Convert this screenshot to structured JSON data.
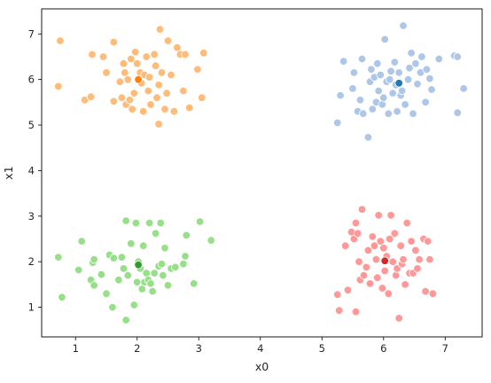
{
  "chart_data": {
    "type": "scatter",
    "xlabel": "x0",
    "ylabel": "x1",
    "xlim": [
      0.45,
      7.6
    ],
    "ylim": [
      0.35,
      7.55
    ],
    "x_ticks": [
      1,
      2,
      3,
      4,
      5,
      6,
      7
    ],
    "y_ticks": [
      1,
      2,
      3,
      4,
      5,
      6,
      7
    ],
    "x_tick_labels": [
      "1",
      "2",
      "3",
      "4",
      "5",
      "6",
      "7"
    ],
    "y_tick_labels": [
      "1",
      "2",
      "3",
      "4",
      "5",
      "6",
      "7"
    ],
    "grid": false,
    "series": [
      {
        "color": "#ffbb78",
        "points": [
          [
            0.75,
            6.85
          ],
          [
            0.72,
            5.85
          ],
          [
            1.15,
            5.55
          ],
          [
            1.25,
            5.62
          ],
          [
            1.27,
            6.55
          ],
          [
            1.45,
            6.5
          ],
          [
            1.5,
            6.15
          ],
          [
            1.62,
            6.82
          ],
          [
            1.62,
            5.52
          ],
          [
            1.72,
            5.95
          ],
          [
            1.75,
            5.6
          ],
          [
            1.78,
            6.35
          ],
          [
            1.8,
            6.15
          ],
          [
            1.82,
            5.45
          ],
          [
            1.85,
            6.0
          ],
          [
            1.88,
            5.55
          ],
          [
            1.9,
            6.45
          ],
          [
            1.92,
            5.35
          ],
          [
            1.95,
            5.7
          ],
          [
            1.97,
            6.6
          ],
          [
            2.0,
            6.35
          ],
          [
            2.05,
            6.15
          ],
          [
            2.07,
            5.92
          ],
          [
            2.1,
            5.3
          ],
          [
            2.12,
            6.1
          ],
          [
            2.15,
            6.5
          ],
          [
            2.18,
            5.75
          ],
          [
            2.2,
            6.05
          ],
          [
            2.22,
            5.45
          ],
          [
            2.28,
            6.55
          ],
          [
            2.3,
            6.3
          ],
          [
            2.32,
            5.6
          ],
          [
            2.35,
            5.02
          ],
          [
            2.35,
            5.88
          ],
          [
            2.37,
            7.1
          ],
          [
            2.4,
            6.15
          ],
          [
            2.45,
            5.35
          ],
          [
            2.48,
            5.7
          ],
          [
            2.5,
            6.85
          ],
          [
            2.55,
            6.1
          ],
          [
            2.6,
            5.3
          ],
          [
            2.65,
            6.7
          ],
          [
            2.7,
            6.55
          ],
          [
            2.75,
            5.75
          ],
          [
            2.78,
            6.55
          ],
          [
            2.85,
            5.38
          ],
          [
            2.98,
            6.22
          ],
          [
            3.05,
            5.6
          ],
          [
            3.08,
            6.58
          ]
        ]
      },
      {
        "color": "#aec7e8",
        "points": [
          [
            5.25,
            5.05
          ],
          [
            5.3,
            5.65
          ],
          [
            5.35,
            6.4
          ],
          [
            5.5,
            5.8
          ],
          [
            5.52,
            6.15
          ],
          [
            5.58,
            5.3
          ],
          [
            5.62,
            5.55
          ],
          [
            5.65,
            6.45
          ],
          [
            5.67,
            5.25
          ],
          [
            5.75,
            4.73
          ],
          [
            5.78,
            5.95
          ],
          [
            5.8,
            6.22
          ],
          [
            5.82,
            5.35
          ],
          [
            5.85,
            6.05
          ],
          [
            5.88,
            5.5
          ],
          [
            5.9,
            6.35
          ],
          [
            5.92,
            5.75
          ],
          [
            5.95,
            6.1
          ],
          [
            5.98,
            5.45
          ],
          [
            6.0,
            5.6
          ],
          [
            6.02,
            6.88
          ],
          [
            6.05,
            5.95
          ],
          [
            6.08,
            5.25
          ],
          [
            6.1,
            6.0
          ],
          [
            6.12,
            6.18
          ],
          [
            6.15,
            5.7
          ],
          [
            6.18,
            6.38
          ],
          [
            6.2,
            5.88
          ],
          [
            6.22,
            5.3
          ],
          [
            6.25,
            6.15
          ],
          [
            6.28,
            5.65
          ],
          [
            6.3,
            5.75
          ],
          [
            6.32,
            7.18
          ],
          [
            6.35,
            5.45
          ],
          [
            6.4,
            6.0
          ],
          [
            6.42,
            6.25
          ],
          [
            6.45,
            6.58
          ],
          [
            6.48,
            5.25
          ],
          [
            6.52,
            6.35
          ],
          [
            6.55,
            5.9
          ],
          [
            6.6,
            6.15
          ],
          [
            6.62,
            6.5
          ],
          [
            6.68,
            5.5
          ],
          [
            6.7,
            6.22
          ],
          [
            6.75,
            6.02
          ],
          [
            6.78,
            5.78
          ],
          [
            6.9,
            6.45
          ],
          [
            7.15,
            6.52
          ],
          [
            7.2,
            6.5
          ],
          [
            7.2,
            5.27
          ],
          [
            7.3,
            5.8
          ]
        ]
      },
      {
        "color": "#98df8a",
        "points": [
          [
            0.72,
            2.1
          ],
          [
            0.78,
            1.22
          ],
          [
            1.05,
            1.82
          ],
          [
            1.1,
            2.45
          ],
          [
            1.25,
            1.6
          ],
          [
            1.28,
            1.98
          ],
          [
            1.3,
            1.48
          ],
          [
            1.3,
            2.05
          ],
          [
            1.42,
            1.72
          ],
          [
            1.5,
            1.3
          ],
          [
            1.55,
            2.15
          ],
          [
            1.6,
            1.0
          ],
          [
            1.62,
            2.08
          ],
          [
            1.7,
            1.6
          ],
          [
            1.75,
            2.1
          ],
          [
            1.78,
            1.85
          ],
          [
            1.82,
            0.72
          ],
          [
            1.82,
            2.9
          ],
          [
            1.85,
            1.7
          ],
          [
            1.9,
            2.4
          ],
          [
            1.95,
            1.05
          ],
          [
            1.98,
            2.85
          ],
          [
            2.0,
            1.55
          ],
          [
            2.02,
            2.0
          ],
          [
            2.05,
            1.85
          ],
          [
            2.08,
            1.4
          ],
          [
            2.1,
            2.35
          ],
          [
            2.12,
            1.55
          ],
          [
            2.15,
            1.75
          ],
          [
            2.18,
            1.6
          ],
          [
            2.2,
            2.85
          ],
          [
            2.22,
            1.52
          ],
          [
            2.25,
            1.35
          ],
          [
            2.28,
            1.75
          ],
          [
            2.3,
            2.62
          ],
          [
            2.35,
            1.9
          ],
          [
            2.38,
            2.85
          ],
          [
            2.4,
            1.95
          ],
          [
            2.42,
            1.7
          ],
          [
            2.45,
            2.3
          ],
          [
            2.5,
            1.48
          ],
          [
            2.55,
            1.85
          ],
          [
            2.62,
            1.88
          ],
          [
            2.75,
            1.95
          ],
          [
            2.78,
            2.12
          ],
          [
            2.8,
            2.58
          ],
          [
            2.92,
            1.52
          ],
          [
            3.02,
            2.88
          ],
          [
            3.2,
            2.47
          ]
        ]
      },
      {
        "color": "#ff9896",
        "points": [
          [
            5.25,
            1.28
          ],
          [
            5.28,
            0.93
          ],
          [
            5.38,
            2.35
          ],
          [
            5.42,
            1.38
          ],
          [
            5.48,
            2.65
          ],
          [
            5.52,
            2.5
          ],
          [
            5.55,
            2.85
          ],
          [
            5.55,
            0.9
          ],
          [
            5.58,
            2.62
          ],
          [
            5.6,
            2.0
          ],
          [
            5.62,
            1.6
          ],
          [
            5.65,
            3.15
          ],
          [
            5.68,
            1.7
          ],
          [
            5.72,
            1.88
          ],
          [
            5.75,
            2.25
          ],
          [
            5.78,
            1.52
          ],
          [
            5.82,
            2.55
          ],
          [
            5.85,
            2.35
          ],
          [
            5.88,
            2.05
          ],
          [
            5.9,
            1.65
          ],
          [
            5.92,
            3.02
          ],
          [
            5.95,
            2.45
          ],
          [
            5.98,
            1.42
          ],
          [
            6.0,
            2.3
          ],
          [
            6.02,
            1.8
          ],
          [
            6.05,
            2.12
          ],
          [
            6.08,
            1.3
          ],
          [
            6.1,
            2.5
          ],
          [
            6.12,
            3.02
          ],
          [
            6.15,
            2.0
          ],
          [
            6.18,
            2.62
          ],
          [
            6.2,
            1.7
          ],
          [
            6.22,
            1.85
          ],
          [
            6.25,
            0.76
          ],
          [
            6.28,
            2.35
          ],
          [
            6.3,
            1.95
          ],
          [
            6.32,
            2.05
          ],
          [
            6.35,
            1.5
          ],
          [
            6.38,
            2.85
          ],
          [
            6.42,
            1.75
          ],
          [
            6.45,
            2.45
          ],
          [
            6.48,
            1.75
          ],
          [
            6.52,
            2.25
          ],
          [
            6.55,
            1.85
          ],
          [
            6.58,
            2.05
          ],
          [
            6.65,
            2.5
          ],
          [
            6.68,
            1.35
          ],
          [
            6.72,
            2.45
          ],
          [
            6.75,
            2.05
          ],
          [
            6.8,
            1.3
          ]
        ]
      }
    ],
    "centers": [
      {
        "color": "#ff7f0e",
        "x": 2.02,
        "y": 6.0
      },
      {
        "color": "#1f77b4",
        "x": 6.25,
        "y": 5.92
      },
      {
        "color": "#2ca02c",
        "x": 2.02,
        "y": 1.93
      },
      {
        "color": "#d62728",
        "x": 6.02,
        "y": 2.02
      }
    ]
  }
}
